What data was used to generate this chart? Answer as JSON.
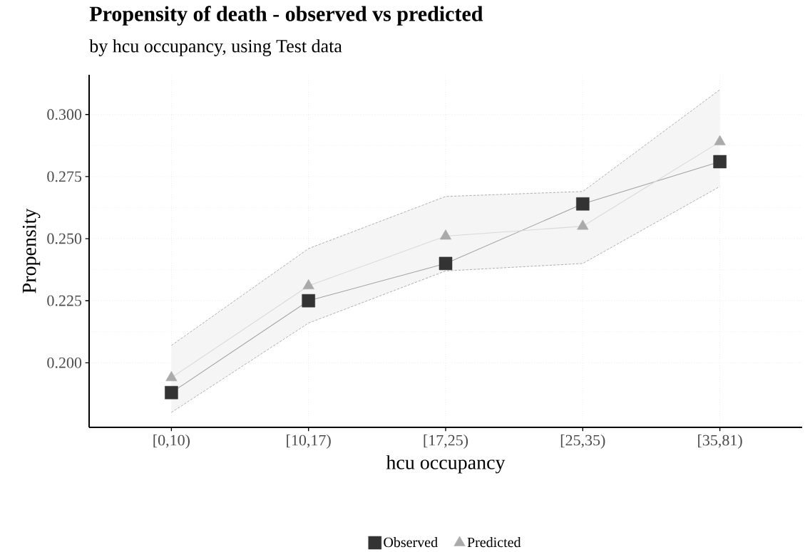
{
  "chart_data": {
    "type": "line",
    "title": "Propensity of death - observed vs predicted",
    "subtitle": "by hcu occupancy, using Test data",
    "xlabel": "hcu occupancy",
    "ylabel": "Propensity",
    "categories": [
      "[0,10)",
      "[10,17)",
      "[17,25)",
      "[25,35)",
      "[35,81)"
    ],
    "series": [
      {
        "name": "Observed",
        "color": "#333333",
        "marker": "square",
        "values": [
          0.188,
          0.225,
          0.24,
          0.264,
          0.281
        ]
      },
      {
        "name": "Predicted",
        "color": "#aaaaaa",
        "marker": "triangle",
        "values": [
          0.194,
          0.231,
          0.251,
          0.255,
          0.289
        ],
        "lower": [
          0.18,
          0.216,
          0.237,
          0.24,
          0.271
        ],
        "upper": [
          0.207,
          0.246,
          0.267,
          0.269,
          0.31
        ]
      },
      {
        "type": "line",
        "color": "#aaaaaa",
        "line_style": "dashed",
        "marker": "none",
        "values": [
          0.207,
          0.246,
          0.267,
          0.269,
          0.31
        ]
      },
      {
        "type": "line",
        "color": "#aaaaaa",
        "line_style": "dashed",
        "marker": "none",
        "values": [
          0.18,
          0.216,
          0.237,
          0.24,
          0.271
        ]
      }
    ],
    "ylim": [
      0.174,
      0.316
    ],
    "yticks": [
      {
        "value": 0.2,
        "label": "0.200"
      },
      {
        "value": 0.225,
        "label": "0.225"
      },
      {
        "value": 0.25,
        "label": "0.250"
      },
      {
        "value": 0.275,
        "label": "0.275"
      },
      {
        "value": 0.3,
        "label": "0.300"
      }
    ],
    "grid": true,
    "legend": "bottom"
  }
}
